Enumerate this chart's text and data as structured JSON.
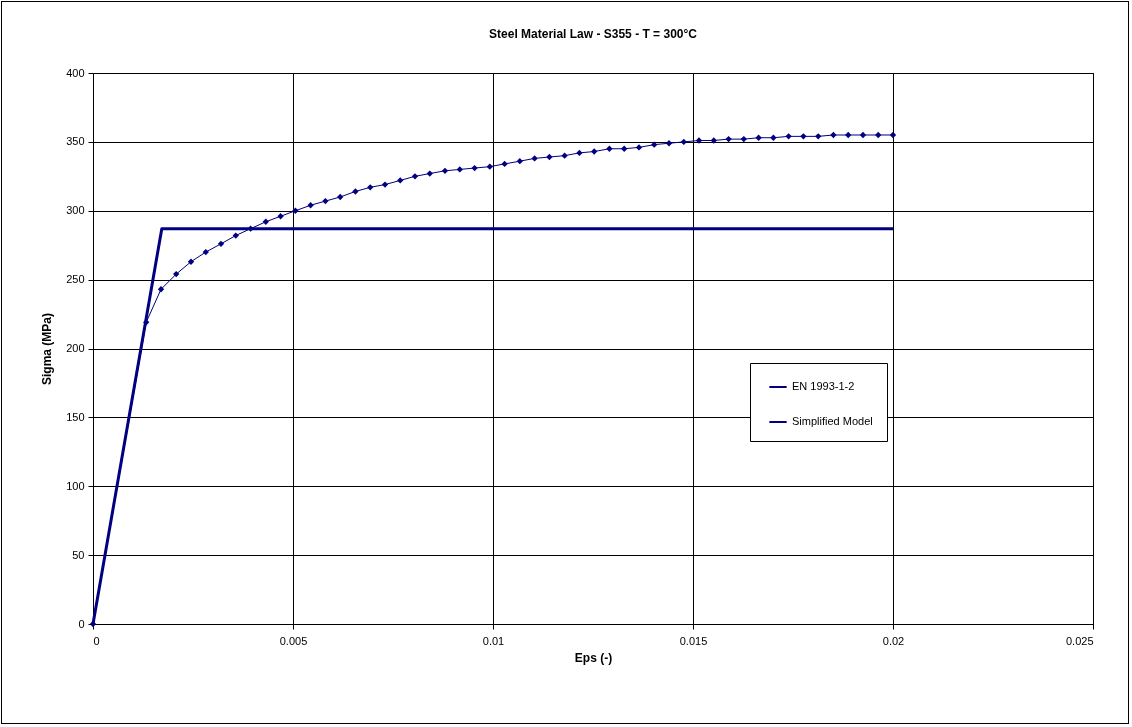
{
  "chart_data": {
    "type": "line",
    "title": "Steel Material Law - S355 - T = 300°C",
    "xlabel": "Eps (-)",
    "ylabel": "Sigma (MPa)",
    "xlim": [
      0,
      0.025
    ],
    "xticks": [
      0,
      0.005,
      0.01,
      0.015,
      0.02,
      0.025
    ],
    "ylim": [
      0,
      400
    ],
    "yticks": [
      0,
      50,
      100,
      150,
      200,
      250,
      300,
      350,
      400
    ],
    "grid": true,
    "legend": "right",
    "series": [
      {
        "name": "EN 1993-1-2",
        "color": "#000080",
        "marker": "diamond",
        "x": [
          0,
          0.00133,
          0.0017,
          0.00208,
          0.00245,
          0.00282,
          0.0032,
          0.00357,
          0.00394,
          0.00432,
          0.00469,
          0.00506,
          0.00544,
          0.00581,
          0.00618,
          0.00656,
          0.00693,
          0.0073,
          0.00768,
          0.00805,
          0.00842,
          0.0088,
          0.00917,
          0.00954,
          0.00992,
          0.01029,
          0.01067,
          0.01104,
          0.01141,
          0.01179,
          0.01216,
          0.01253,
          0.01291,
          0.01328,
          0.01365,
          0.01403,
          0.0144,
          0.01477,
          0.01515,
          0.01552,
          0.01589,
          0.01627,
          0.01664,
          0.01701,
          0.01739,
          0.01776,
          0.01813,
          0.01851,
          0.01888,
          0.01925,
          0.01963,
          0.02
        ],
        "values": [
          0,
          219,
          243,
          254,
          263,
          270,
          276,
          282,
          287,
          292,
          296,
          300,
          304,
          307,
          310,
          314,
          317,
          319,
          322,
          325,
          327,
          329,
          330,
          331,
          332,
          334,
          336,
          338,
          339,
          340,
          342,
          343,
          345,
          345,
          346,
          348,
          349,
          350,
          351,
          351,
          352,
          352,
          353,
          353,
          354,
          354,
          354,
          355,
          355,
          355,
          355,
          355
        ]
      },
      {
        "name": "Simplified Model",
        "color": "#000080",
        "marker": "none",
        "x": [
          0,
          0.00172,
          0.02
        ],
        "values": [
          0,
          287,
          287
        ]
      }
    ]
  }
}
